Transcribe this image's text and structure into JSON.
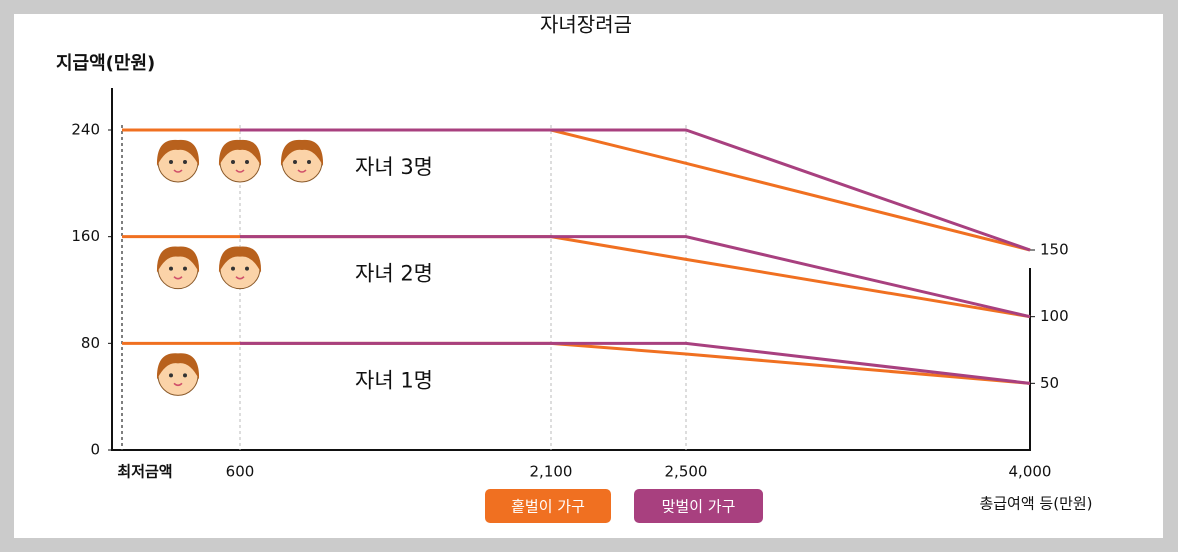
{
  "chart_data": {
    "type": "line",
    "title": "자녀장려금",
    "y_label": "지급액(만원)",
    "x_label": "총급여액 등(만원)",
    "categories": [
      "최저금액",
      "600",
      "2,100",
      "2,500",
      "4,000"
    ],
    "ylim": [
      0,
      270
    ],
    "yticks": [
      0,
      80,
      160,
      240
    ],
    "right_ticks": [
      50,
      100,
      150
    ],
    "legend": [
      {
        "name": "홑벌이 가구",
        "color": "#f07021"
      },
      {
        "name": "맞벌이 가구",
        "color": "#a8407f"
      }
    ],
    "groups": [
      {
        "label": "자녀 3명",
        "series": [
          {
            "values": [
              240,
              240,
              240,
              215,
              150
            ]
          },
          {
            "values": [
              null,
              240,
              240,
              240,
              150
            ]
          }
        ]
      },
      {
        "label": "자녀 2명",
        "series": [
          {
            "values": [
              160,
              160,
              160,
              143,
              100
            ]
          },
          {
            "values": [
              null,
              160,
              160,
              160,
              100
            ]
          }
        ]
      },
      {
        "label": "자녀 1명",
        "series": [
          {
            "values": [
              80,
              80,
              80,
              72,
              50
            ]
          },
          {
            "values": [
              null,
              80,
              80,
              80,
              50
            ]
          }
        ]
      }
    ]
  }
}
